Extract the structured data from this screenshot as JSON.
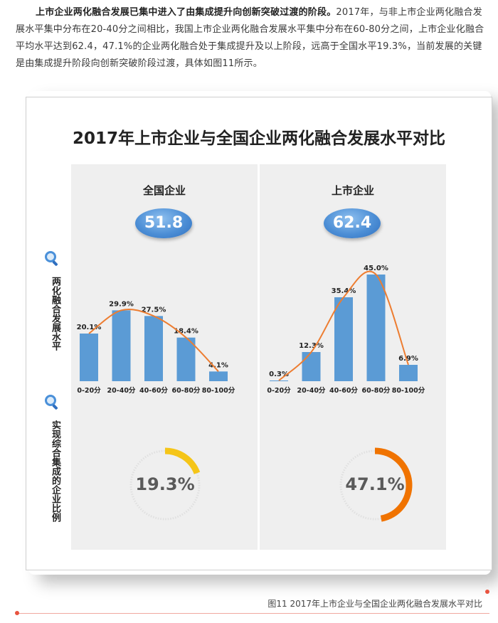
{
  "intro": {
    "bold": "上市企业两化融合发展已集中进入了由集成提升向创新突破过渡的阶段。",
    "rest": "2017年，与非上市企业两化融合发展水平集中分布在20-40分之间相比，我国上市企业两化融合发展水平集中分布在60-80分之间，上市企业化融合平均水平达到62.4，47.1%的企业两化融合处于集成提升及以上阶段，远高于全国水平19.3%，当前发展的关键是由集成提升阶段向创新突破阶段过渡，具体如图11所示。"
  },
  "figure": {
    "side_label_top": "两化融合发展水平",
    "side_label_bottom": "实现综合集成的企业比例",
    "caption": "图11 2017年上市企业与全国企业两化融合发展水平对比"
  },
  "colors": {
    "bar": "#5b9bd5",
    "curve": "#ed7d31",
    "donut_left": "#f5c518",
    "donut_right": "#f07300",
    "track": "#e0e0e0"
  },
  "chart_data": {
    "type": "bar",
    "title": "2017年上市企业与全国企业两化融合发展水平对比",
    "categories": [
      "0-20分",
      "20-40分",
      "40-60分",
      "60-80分",
      "80-100分"
    ],
    "series": [
      {
        "name": "全国企业",
        "average": "51.8",
        "values": [
          20.1,
          29.9,
          27.5,
          18.4,
          4.1
        ],
        "labels": [
          "20.1%",
          "29.9%",
          "27.5%",
          "18.4%",
          "4.1%"
        ],
        "integration_ratio": 19.3,
        "integration_label": "19.3%"
      },
      {
        "name": "上市企业",
        "average": "62.4",
        "values": [
          0.3,
          12.3,
          35.4,
          45.0,
          6.9
        ],
        "labels": [
          "0.3%",
          "12.3%",
          "35.4%",
          "45.0%",
          "6.9%"
        ],
        "integration_ratio": 47.1,
        "integration_label": "47.1%"
      }
    ],
    "ylim": [
      0,
      45
    ],
    "grid": false
  }
}
